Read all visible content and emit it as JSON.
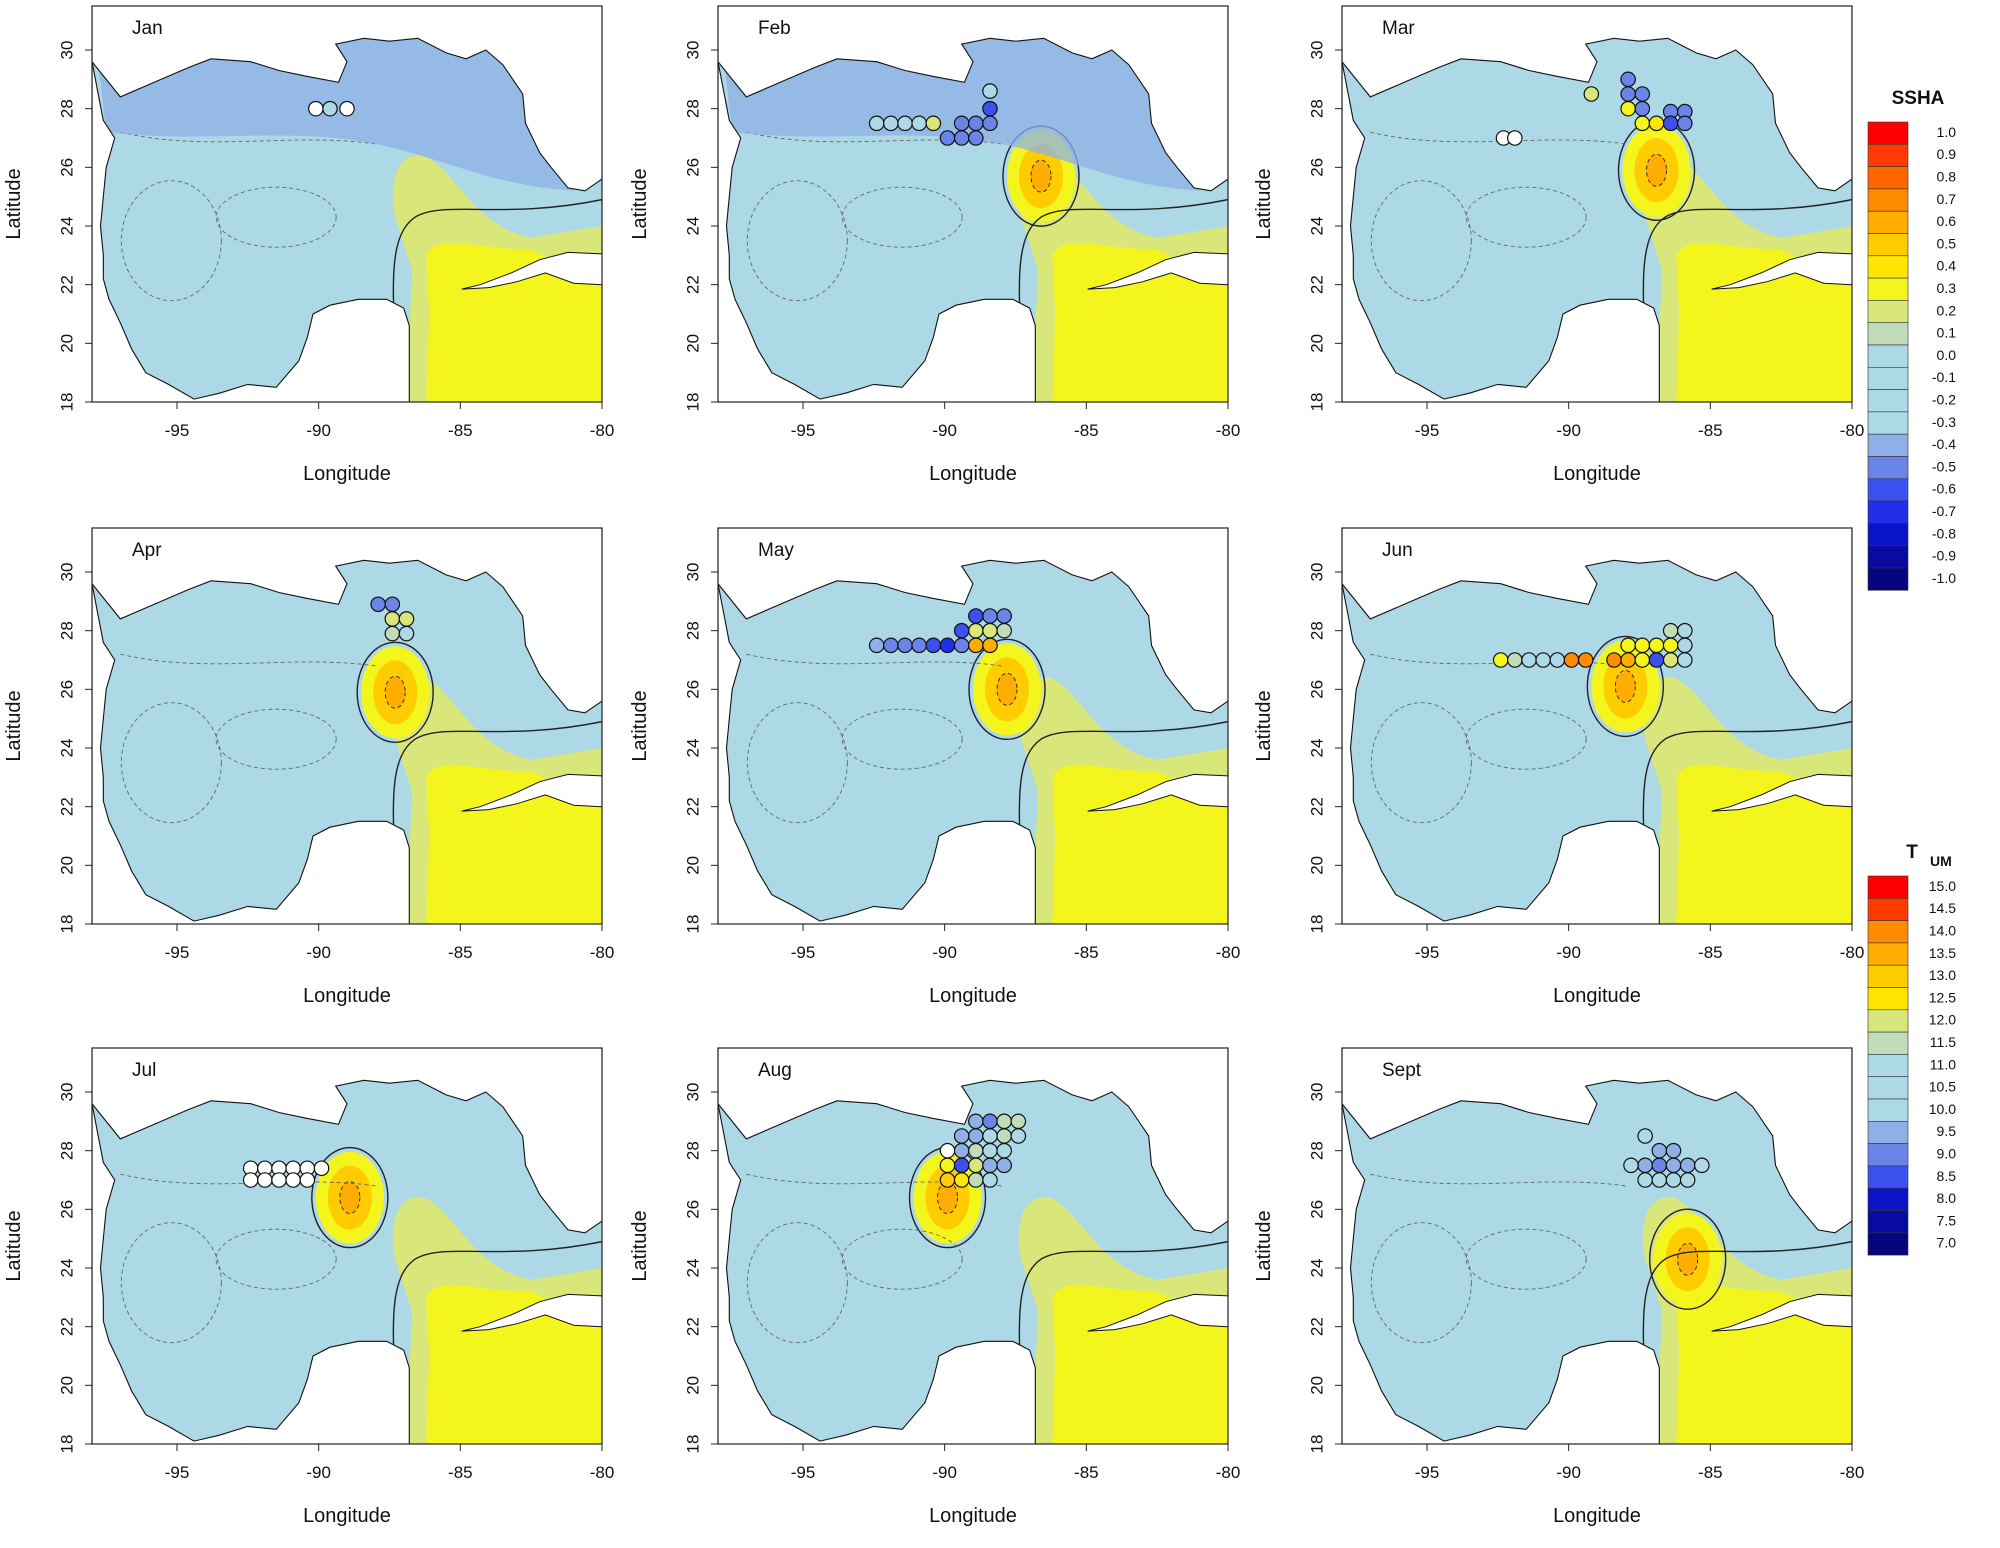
{
  "axes": {
    "x_title": "Longitude",
    "y_title": "Latitude",
    "x_ticks": [
      "-95",
      "-90",
      "-85",
      "-80"
    ],
    "y_ticks": [
      "18",
      "20",
      "22",
      "24",
      "26",
      "28",
      "30"
    ]
  },
  "panels": [
    {
      "month": "Jan",
      "ring_eddy": null,
      "stations": [
        [
          -90.1,
          28.0,
          "white"
        ],
        [
          -89.6,
          28.0,
          "c0.0"
        ],
        [
          -89.0,
          28.0,
          "white"
        ]
      ]
    },
    {
      "month": "Feb",
      "ring_eddy": [
        -86.6,
        25.7
      ],
      "stations": [
        [
          -92.4,
          27.5,
          "c0.0"
        ],
        [
          -91.9,
          27.5,
          "c0.0"
        ],
        [
          -91.4,
          27.5,
          "c0.0"
        ],
        [
          -90.9,
          27.5,
          "c0.0"
        ],
        [
          -90.4,
          27.5,
          "c0.2"
        ],
        [
          -89.9,
          27.0,
          "c-0.5"
        ],
        [
          -89.4,
          27.0,
          "c-0.5"
        ],
        [
          -88.9,
          27.0,
          "c-0.5"
        ],
        [
          -89.4,
          27.5,
          "c-0.5"
        ],
        [
          -88.9,
          27.5,
          "c-0.5"
        ],
        [
          -88.4,
          27.5,
          "c-0.5"
        ],
        [
          -88.4,
          28.0,
          "c-0.6"
        ],
        [
          -88.4,
          28.6,
          "c0.0"
        ]
      ]
    },
    {
      "month": "Mar",
      "ring_eddy": [
        -86.9,
        25.9
      ],
      "stations": [
        [
          -92.3,
          27.0,
          "white"
        ],
        [
          -91.9,
          27.0,
          "white"
        ],
        [
          -89.2,
          28.5,
          "c0.2"
        ],
        [
          -87.9,
          29.0,
          "c-0.5"
        ],
        [
          -87.9,
          28.5,
          "c-0.5"
        ],
        [
          -87.9,
          28.0,
          "c0.3"
        ],
        [
          -87.4,
          28.5,
          "c-0.5"
        ],
        [
          -87.4,
          28.0,
          "c-0.5"
        ],
        [
          -87.4,
          27.5,
          "c0.3"
        ],
        [
          -86.9,
          27.5,
          "c0.4"
        ],
        [
          -86.4,
          27.9,
          "c-0.5"
        ],
        [
          -85.9,
          27.9,
          "c-0.5"
        ],
        [
          -86.4,
          27.5,
          "c-0.6"
        ],
        [
          -85.9,
          27.5,
          "c-0.5"
        ]
      ]
    },
    {
      "month": "Apr",
      "ring_eddy": [
        -87.3,
        25.9
      ],
      "stations": [
        [
          -87.9,
          28.9,
          "c-0.5"
        ],
        [
          -87.4,
          28.9,
          "c-0.5"
        ],
        [
          -87.4,
          28.4,
          "c0.2"
        ],
        [
          -86.9,
          28.4,
          "c0.2"
        ],
        [
          -87.4,
          27.9,
          "c0.1"
        ],
        [
          -86.9,
          27.9,
          "c0.0"
        ]
      ]
    },
    {
      "month": "May",
      "ring_eddy": [
        -87.8,
        26.0
      ],
      "stations": [
        [
          -92.4,
          27.5,
          "c-0.4"
        ],
        [
          -91.9,
          27.5,
          "c-0.5"
        ],
        [
          -91.4,
          27.5,
          "c-0.5"
        ],
        [
          -90.9,
          27.5,
          "c-0.5"
        ],
        [
          -90.4,
          27.5,
          "c-0.6"
        ],
        [
          -89.9,
          27.5,
          "c-0.7"
        ],
        [
          -89.4,
          27.5,
          "c-0.5"
        ],
        [
          -88.9,
          27.5,
          "c0.6"
        ],
        [
          -88.4,
          27.5,
          "c0.6"
        ],
        [
          -88.9,
          28.0,
          "c0.2"
        ],
        [
          -88.4,
          28.0,
          "c0.2"
        ],
        [
          -87.9,
          28.0,
          "c0.1"
        ],
        [
          -89.4,
          28.0,
          "c-0.6"
        ],
        [
          -88.9,
          28.5,
          "c-0.6"
        ],
        [
          -88.4,
          28.5,
          "c-0.5"
        ],
        [
          -87.9,
          28.5,
          "c-0.5"
        ]
      ]
    },
    {
      "month": "Jun",
      "ring_eddy": [
        -88.0,
        26.1
      ],
      "stations": [
        [
          -92.4,
          27.0,
          "c0.3"
        ],
        [
          -91.9,
          27.0,
          "c0.1"
        ],
        [
          -91.4,
          27.0,
          "c0.0"
        ],
        [
          -90.9,
          27.0,
          "c0.0"
        ],
        [
          -90.4,
          27.0,
          "c0.0"
        ],
        [
          -89.9,
          27.0,
          "c0.7"
        ],
        [
          -89.4,
          27.0,
          "c0.7"
        ],
        [
          -88.4,
          27.0,
          "c0.7"
        ],
        [
          -87.9,
          27.0,
          "c0.6"
        ],
        [
          -87.4,
          27.0,
          "c0.3"
        ],
        [
          -86.9,
          27.0,
          "c-0.6"
        ],
        [
          -86.4,
          27.0,
          "c0.2"
        ],
        [
          -85.9,
          27.0,
          "c0.0"
        ],
        [
          -87.9,
          27.5,
          "c0.3"
        ],
        [
          -87.4,
          27.5,
          "c0.3"
        ],
        [
          -86.9,
          27.5,
          "c0.3"
        ],
        [
          -86.4,
          27.5,
          "c0.3"
        ],
        [
          -85.9,
          27.5,
          "c0.0"
        ],
        [
          -86.4,
          28.0,
          "c0.1"
        ],
        [
          -85.9,
          28.0,
          "c0.0"
        ]
      ]
    },
    {
      "month": "Jul",
      "ring_eddy": [
        -88.9,
        26.4
      ],
      "stations": [
        [
          -92.4,
          27.4,
          "white"
        ],
        [
          -91.9,
          27.4,
          "white"
        ],
        [
          -91.4,
          27.4,
          "white"
        ],
        [
          -90.9,
          27.4,
          "white"
        ],
        [
          -90.4,
          27.4,
          "white"
        ],
        [
          -89.9,
          27.4,
          "white"
        ],
        [
          -92.4,
          27.0,
          "white"
        ],
        [
          -91.9,
          27.0,
          "white"
        ],
        [
          -91.4,
          27.0,
          "white"
        ],
        [
          -90.9,
          27.0,
          "white"
        ],
        [
          -90.4,
          27.0,
          "white"
        ]
      ]
    },
    {
      "month": "Aug",
      "ring_eddy": [
        -89.9,
        26.4
      ],
      "stations": [
        [
          -89.9,
          27.0,
          "c0.5"
        ],
        [
          -89.4,
          27.0,
          "c0.4"
        ],
        [
          -88.9,
          27.0,
          "c0.1"
        ],
        [
          -88.4,
          27.0,
          "c0.0"
        ],
        [
          -89.9,
          27.5,
          "c0.3"
        ],
        [
          -89.4,
          27.5,
          "c-0.6"
        ],
        [
          -88.9,
          27.5,
          "c0.2"
        ],
        [
          -88.4,
          27.5,
          "c-0.4"
        ],
        [
          -87.9,
          27.5,
          "c-0.4"
        ],
        [
          -89.9,
          28.0,
          "white"
        ],
        [
          -89.4,
          28.0,
          "c-0.4"
        ],
        [
          -88.9,
          28.0,
          "c0.1"
        ],
        [
          -88.4,
          28.0,
          "c0.0"
        ],
        [
          -87.9,
          28.0,
          "c0.0"
        ],
        [
          -89.4,
          28.5,
          "c-0.4"
        ],
        [
          -88.9,
          28.5,
          "c-0.4"
        ],
        [
          -88.4,
          28.5,
          "c0.0"
        ],
        [
          -87.9,
          28.5,
          "c0.1"
        ],
        [
          -88.9,
          29.0,
          "c-0.4"
        ],
        [
          -88.4,
          29.0,
          "c-0.5"
        ],
        [
          -87.9,
          29.0,
          "c0.1"
        ],
        [
          -87.4,
          29.0,
          "c0.1"
        ],
        [
          -87.4,
          28.5,
          "c0.0"
        ]
      ]
    },
    {
      "month": "Sept",
      "ring_eddy": [
        -85.8,
        24.3
      ],
      "stations": [
        [
          -87.3,
          28.5,
          "c0.0"
        ],
        [
          -86.8,
          28.0,
          "c-0.4"
        ],
        [
          -86.3,
          28.0,
          "c-0.4"
        ],
        [
          -87.3,
          27.5,
          "c-0.4"
        ],
        [
          -86.8,
          27.5,
          "c-0.5"
        ],
        [
          -86.3,
          27.5,
          "c-0.4"
        ],
        [
          -85.8,
          27.5,
          "c-0.4"
        ],
        [
          -85.3,
          27.5,
          "c0.0"
        ],
        [
          -87.3,
          27.0,
          "c0.0"
        ],
        [
          -86.8,
          27.0,
          "c0.0"
        ],
        [
          -86.3,
          27.0,
          "c0.0"
        ],
        [
          -85.8,
          27.0,
          "c0.0"
        ],
        [
          -87.8,
          27.5,
          "c0.0"
        ]
      ]
    }
  ],
  "legends": [
    {
      "title": "SSHA",
      "subscript": "",
      "labels": [
        "1.0",
        "0.9",
        "0.8",
        "0.7",
        "0.6",
        "0.5",
        "0.4",
        "0.3",
        "0.2",
        "0.1",
        "0.0",
        "-0.1",
        "-0.2",
        "-0.3",
        "-0.4",
        "-0.5",
        "-0.6",
        "-0.7",
        "-0.8",
        "-0.9",
        "-1.0"
      ]
    },
    {
      "title": "T",
      "subscript": "UM",
      "labels": [
        "15.0",
        "14.5",
        "14.0",
        "13.5",
        "13.0",
        "12.5",
        "12.0",
        "11.5",
        "11.0",
        "10.5",
        "10.0",
        "9.5",
        "9.0",
        "8.5",
        "8.0",
        "7.5",
        "7.0"
      ]
    }
  ],
  "colors": {
    "c1.0": "#ff0000",
    "c0.9": "#ff3a00",
    "c0.8": "#ff6600",
    "c0.7": "#ff8c00",
    "c0.6": "#ffad00",
    "c0.5": "#ffcc00",
    "c0.4": "#ffe600",
    "c0.3": "#f5f51e",
    "c0.2": "#d9e67a",
    "c0.1": "#c0dcb8",
    "c0.0": "#add8e6",
    "c-0.4": "#8eb0e6",
    "c-0.5": "#6a84e8",
    "c-0.6": "#3c50f0",
    "c-0.7": "#1f2ee8",
    "c-0.8": "#0a14c8",
    "c-0.9": "#080aa0",
    "c-1.0": "#050580",
    "white": "#ffffff",
    "land": "#ffffff",
    "ocean": "#add8e6",
    "gulf_stream": "#3a4df0",
    "coast": "#111111"
  }
}
